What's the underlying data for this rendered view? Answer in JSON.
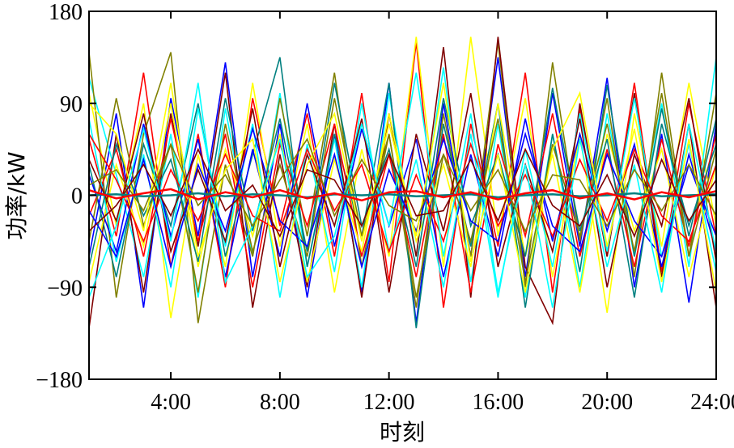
{
  "chart_data": {
    "type": "line",
    "title": "",
    "xlabel": "时刻",
    "ylabel": "功率/kW",
    "xlim": [
      1,
      24
    ],
    "ylim": [
      -180,
      180
    ],
    "x_ticks": [
      {
        "value": 4,
        "label": "4:00"
      },
      {
        "value": 8,
        "label": "8:00"
      },
      {
        "value": 12,
        "label": "12:00"
      },
      {
        "value": 16,
        "label": "16:00"
      },
      {
        "value": 20,
        "label": "20:00"
      },
      {
        "value": 24,
        "label": "24:00"
      }
    ],
    "y_ticks": [
      {
        "value": 180,
        "label": "180"
      },
      {
        "value": 90,
        "label": "90"
      },
      {
        "value": 0,
        "label": "0"
      },
      {
        "value": -90,
        "label": "−90"
      },
      {
        "value": -180,
        "label": "−180"
      }
    ],
    "grid": false,
    "legend": "none",
    "palette": [
      "#ff0000",
      "#0000ff",
      "#ffff00",
      "#00ffff",
      "#808000",
      "#800000",
      "#008080"
    ],
    "hours": [
      1,
      2,
      3,
      4,
      5,
      6,
      7,
      8,
      9,
      10,
      11,
      12,
      13,
      14,
      15,
      16,
      17,
      18,
      19,
      20,
      21,
      22,
      23,
      24
    ],
    "series": [
      {
        "values": [
          55,
          -40,
          120,
          -70,
          60,
          -90,
          95,
          -30,
          80,
          -60,
          100,
          -85,
          150,
          -110,
          70,
          -50,
          120,
          -95,
          85,
          -60,
          110,
          -75,
          90,
          -40
        ]
      },
      {
        "values": [
          -60,
          80,
          -110,
          95,
          -40,
          130,
          -80,
          70,
          -100,
          60,
          -95,
          110,
          -125,
          90,
          -60,
          135,
          -80,
          100,
          -50,
          115,
          -90,
          60,
          -105,
          70
        ]
      },
      {
        "values": [
          100,
          -30,
          90,
          -120,
          40,
          -70,
          110,
          -50,
          70,
          -95,
          45,
          -60,
          155,
          -70,
          155,
          -40,
          95,
          -80,
          60,
          -115,
          80,
          -50,
          110,
          -30
        ]
      },
      {
        "values": [
          115,
          20,
          -80,
          60,
          -100,
          85,
          -60,
          100,
          -70,
          55,
          -90,
          100,
          -60,
          125,
          -85,
          70,
          -100,
          60,
          -90,
          80,
          -60,
          90,
          -70,
          135
        ]
      },
      {
        "values": [
          140,
          -100,
          60,
          140,
          -125,
          30,
          -60,
          95,
          -40,
          120,
          -70,
          60,
          -110,
          80,
          -60,
          150,
          -90,
          130,
          -45,
          95,
          -80,
          120,
          -60,
          100
        ]
      },
      {
        "values": [
          -130,
          60,
          -95,
          80,
          -50,
          120,
          -110,
          40,
          -90,
          70,
          -100,
          80,
          -60,
          145,
          -100,
          155,
          -70,
          -125,
          90,
          -60,
          100,
          -80,
          70,
          -110
        ]
      },
      {
        "values": [
          30,
          -80,
          50,
          -30,
          90,
          -60,
          40,
          135,
          -70,
          60,
          -40,
          110,
          -130,
          70,
          -50,
          90,
          -110,
          60,
          -75,
          108,
          -60,
          85,
          -40,
          75
        ]
      },
      {
        "values": [
          -20,
          45,
          -60,
          75,
          -45,
          60,
          -90,
          50,
          -30,
          70,
          -60,
          40,
          -80,
          60,
          -95,
          50,
          -40,
          80,
          -60,
          45,
          -70,
          55,
          -50,
          60
        ]
      },
      {
        "values": [
          20,
          -55,
          70,
          -40,
          55,
          -80,
          45,
          -60,
          90,
          -50,
          65,
          -30,
          55,
          -80,
          40,
          -60,
          75,
          -45,
          60,
          -35,
          50,
          -70,
          40,
          -55
        ]
      },
      {
        "values": [
          -85,
          30,
          -50,
          90,
          -70,
          45,
          -40,
          60,
          -85,
          35,
          -55,
          80,
          -45,
          30,
          -70,
          90,
          -60,
          40,
          -95,
          60,
          -35,
          45,
          -80,
          30
        ]
      },
      {
        "values": [
          75,
          -65,
          40,
          -90,
          85,
          -50,
          70,
          -100,
          50,
          -75,
          90,
          -55,
          35,
          -90,
          60,
          -100,
          45,
          -70,
          80,
          -55,
          95,
          -60,
          50,
          -75
        ]
      },
      {
        "values": [
          -45,
          95,
          -30,
          50,
          -95,
          70,
          -55,
          30,
          -60,
          95,
          -40,
          60,
          -100,
          40,
          -45,
          75,
          -85,
          50,
          -40,
          70,
          -55,
          100,
          -60,
          45
        ]
      },
      {
        "values": [
          35,
          -25,
          80,
          -55,
          25,
          -45,
          85,
          -70,
          40,
          -30,
          75,
          -95,
          60,
          -35,
          100,
          -70,
          30,
          -55,
          75,
          -90,
          40,
          -30,
          95,
          -65
        ]
      },
      {
        "values": [
          -70,
          50,
          -20,
          35,
          -65,
          95,
          -35,
          75,
          -55,
          110,
          -30,
          45,
          -70,
          95,
          -30,
          40,
          -60,
          105,
          -35,
          55,
          -100,
          70,
          -30,
          50
        ]
      },
      {
        "values": [
          60,
          15,
          -45,
          25,
          -25,
          40,
          -20,
          -35,
          45,
          -15,
          30,
          -55,
          20,
          -45,
          50,
          -30,
          20,
          -40,
          35,
          -25,
          45,
          -20,
          -45,
          30
        ]
      },
      {
        "values": [
          -15,
          -60,
          35,
          -70,
          30,
          -35,
          65,
          -25,
          -50,
          40,
          -70,
          25,
          -35,
          55,
          -25,
          -45,
          60,
          -30,
          -55,
          40,
          -25,
          -60,
          30,
          -40
        ]
      },
      {
        "values": [
          90,
          60,
          -35,
          110,
          -60,
          25,
          55,
          -85,
          30,
          80,
          -45,
          70,
          -40,
          110,
          -65,
          40,
          -95,
          45,
          100,
          -50,
          65,
          -85,
          55,
          -95
        ]
      },
      {
        "values": [
          -100,
          -30,
          65,
          -45,
          110,
          -85,
          -30,
          55,
          -80,
          -40,
          70,
          -30,
          120,
          -60,
          80,
          -95,
          30,
          -110,
          55,
          -70,
          30,
          -95,
          70,
          -55
        ]
      },
      {
        "values": [
          10,
          25,
          -15,
          50,
          -10,
          20,
          -30,
          15,
          55,
          -20,
          35,
          -10,
          -25,
          40,
          -15,
          25,
          -35,
          20,
          15,
          -30,
          25,
          -15,
          30,
          -20
        ]
      },
      {
        "values": [
          -35,
          -10,
          30,
          -20,
          45,
          -15,
          10,
          -40,
          25,
          15,
          -30,
          40,
          -20,
          -15,
          35,
          -25,
          45,
          -10,
          -30,
          20,
          -40,
          35,
          -25,
          15
        ]
      },
      {
        "values": [
          0,
          1,
          -1,
          0,
          2,
          -1,
          1,
          0,
          -2,
          1,
          0,
          1,
          -1,
          0,
          1,
          -2,
          0,
          1,
          -1,
          0,
          2,
          -1,
          0,
          1
        ]
      },
      {
        "values": [
          5,
          -3,
          2,
          6,
          -4,
          3,
          -2,
          5,
          -3,
          2,
          -5,
          3,
          4,
          -2,
          3,
          -4,
          2,
          5,
          -3,
          2,
          -4,
          3,
          -2,
          4
        ]
      }
    ]
  }
}
